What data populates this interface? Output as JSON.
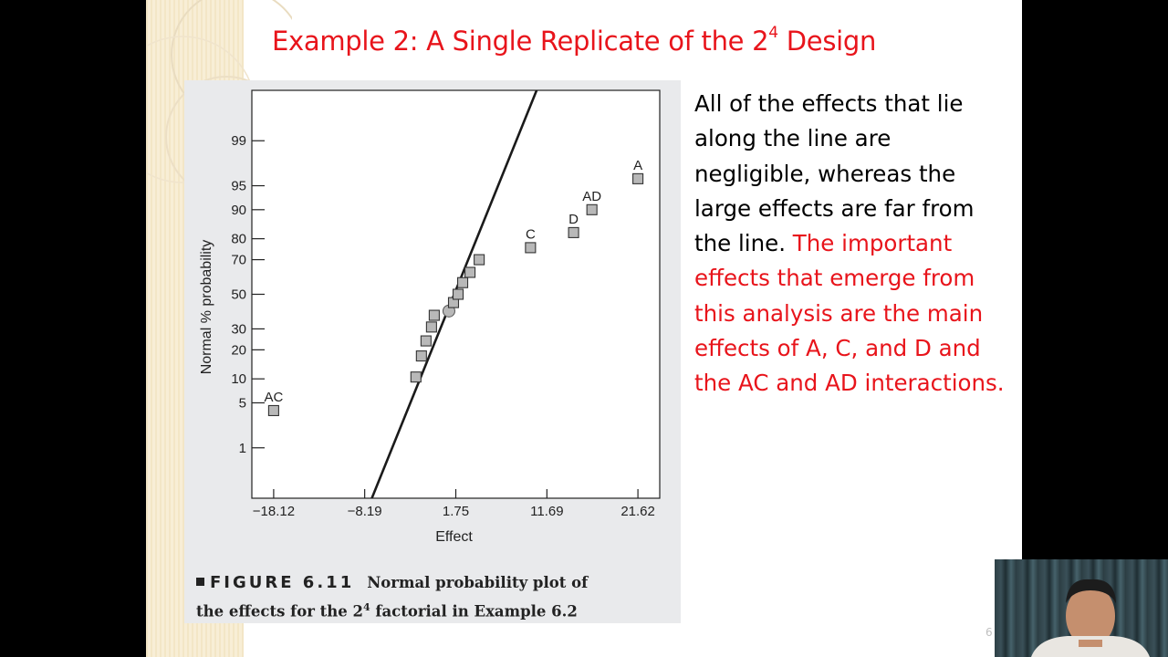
{
  "slide": {
    "title_main": "Example 2:  A Single Replicate of the 2",
    "title_sup": "4",
    "title_end": " Design",
    "page_number": "6"
  },
  "figure": {
    "label": "FIGURE 6.11",
    "caption_a": "Normal probability plot of",
    "caption_b": "the effects for the 2",
    "caption_sup": "4",
    "caption_c": " factorial in Example 6.2"
  },
  "body": {
    "plain": "All of the effects that lie along the line are negligible, whereas the large effects are far from the line. ",
    "emphasis": "The important effects that emerge from this analysis are the main effects of A, C, and D and the AC and AD interactions."
  },
  "chart_data": {
    "type": "scatter",
    "title": "",
    "xlabel": "Effect",
    "ylabel": "Normal % probability",
    "x_ticks": [
      -18.12,
      -8.19,
      1.75,
      11.69,
      21.62
    ],
    "x_tick_labels": [
      "−18.12",
      "−8.19",
      "1.75",
      "11.69",
      "21.62"
    ],
    "xlim": [
      -20.5,
      24.0
    ],
    "y_scale": "normal-probability",
    "y_ticks": [
      1,
      5,
      10,
      20,
      30,
      50,
      70,
      80,
      90,
      95,
      99
    ],
    "ylim": [
      0.1,
      99.9
    ],
    "grid": false,
    "reference_line": {
      "x1": -7.6,
      "y1": 0.08,
      "x2": 11.0,
      "y2": 99.94
    },
    "points": [
      {
        "x": -18.12,
        "y": 3.9,
        "label": "AC",
        "marker": "square"
      },
      {
        "x": -2.6,
        "y": 10.5,
        "label": "",
        "marker": "square"
      },
      {
        "x": -2.0,
        "y": 17.5,
        "label": "",
        "marker": "square"
      },
      {
        "x": -1.5,
        "y": 24.0,
        "label": "",
        "marker": "square"
      },
      {
        "x": -0.9,
        "y": 31.0,
        "label": "",
        "marker": "square"
      },
      {
        "x": -0.6,
        "y": 37.5,
        "label": "",
        "marker": "square"
      },
      {
        "x": 1.0,
        "y": 40.0,
        "label": "",
        "marker": "circle"
      },
      {
        "x": 1.5,
        "y": 45.0,
        "label": "",
        "marker": "square"
      },
      {
        "x": 2.0,
        "y": 50.0,
        "label": "",
        "marker": "square"
      },
      {
        "x": 2.5,
        "y": 57.0,
        "label": "",
        "marker": "square"
      },
      {
        "x": 3.3,
        "y": 63.0,
        "label": "",
        "marker": "square"
      },
      {
        "x": 4.3,
        "y": 70.0,
        "label": "",
        "marker": "square"
      },
      {
        "x": 9.9,
        "y": 76.0,
        "label": "C",
        "marker": "square"
      },
      {
        "x": 14.6,
        "y": 82.5,
        "label": "D",
        "marker": "square"
      },
      {
        "x": 16.6,
        "y": 90.0,
        "label": "AD",
        "marker": "square"
      },
      {
        "x": 21.62,
        "y": 96.0,
        "label": "A",
        "marker": "square"
      }
    ]
  },
  "colors": {
    "title": "#e8141b",
    "emphasis": "#e8141b",
    "figure_bg": "#e9eaec",
    "marker_fill": "#b8b8b8",
    "ink": "#222222"
  }
}
